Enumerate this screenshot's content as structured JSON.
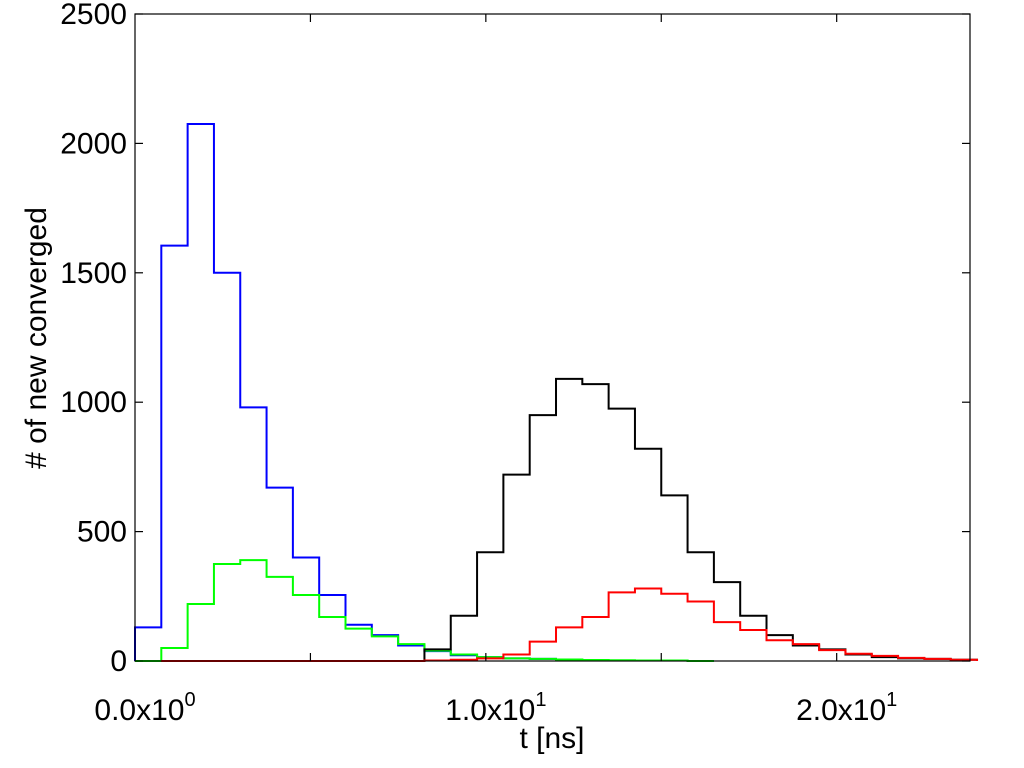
{
  "chart_data": {
    "type": "histogram-step",
    "title": "",
    "xlabel": "t [ns]",
    "ylabel": "# of new converged",
    "xlim": [
      0,
      23.8
    ],
    "ylim": [
      0,
      2500
    ],
    "grid": false,
    "bin_width": 0.75,
    "x_ticks": [
      {
        "value": 0,
        "mantissa": "0.0x10",
        "exp": "0"
      },
      {
        "value": 10,
        "mantissa": "1.0x10",
        "exp": "1"
      },
      {
        "value": 20,
        "mantissa": "2.0x10",
        "exp": "1"
      }
    ],
    "y_ticks": [
      {
        "value": 0,
        "label": "0"
      },
      {
        "value": 500,
        "label": "500"
      },
      {
        "value": 1000,
        "label": "1000"
      },
      {
        "value": 1500,
        "label": "1500"
      },
      {
        "value": 2000,
        "label": "2000"
      },
      {
        "value": 2500,
        "label": "2500"
      }
    ],
    "series": [
      {
        "color": "#0000ff",
        "x_start": 0.0,
        "values": [
          130,
          1605,
          2075,
          1500,
          980,
          670,
          400,
          255,
          140,
          100,
          60,
          38,
          22,
          15,
          10,
          8,
          5,
          3,
          2,
          2,
          2,
          0
        ]
      },
      {
        "color": "#00ff00",
        "x_start": 0.0,
        "values": [
          0,
          50,
          220,
          375,
          390,
          325,
          255,
          170,
          125,
          95,
          65,
          40,
          25,
          15,
          10,
          8,
          6,
          4,
          3,
          2,
          2,
          0
        ]
      },
      {
        "color": "#000000",
        "x_start": 0.75,
        "values": [
          0,
          0,
          0,
          0,
          0,
          0,
          0,
          0,
          0,
          0,
          45,
          175,
          420,
          720,
          950,
          1090,
          1070,
          975,
          820,
          640,
          420,
          305,
          175,
          100,
          60,
          45,
          25,
          15,
          10,
          8,
          5
        ]
      },
      {
        "color": "#ff0000",
        "x_start": 0.75,
        "values": [
          0,
          0,
          0,
          0,
          0,
          0,
          0,
          0,
          0,
          0,
          2,
          5,
          10,
          25,
          75,
          130,
          170,
          265,
          280,
          260,
          230,
          150,
          120,
          80,
          65,
          42,
          28,
          20,
          12,
          8,
          5
        ]
      }
    ]
  }
}
